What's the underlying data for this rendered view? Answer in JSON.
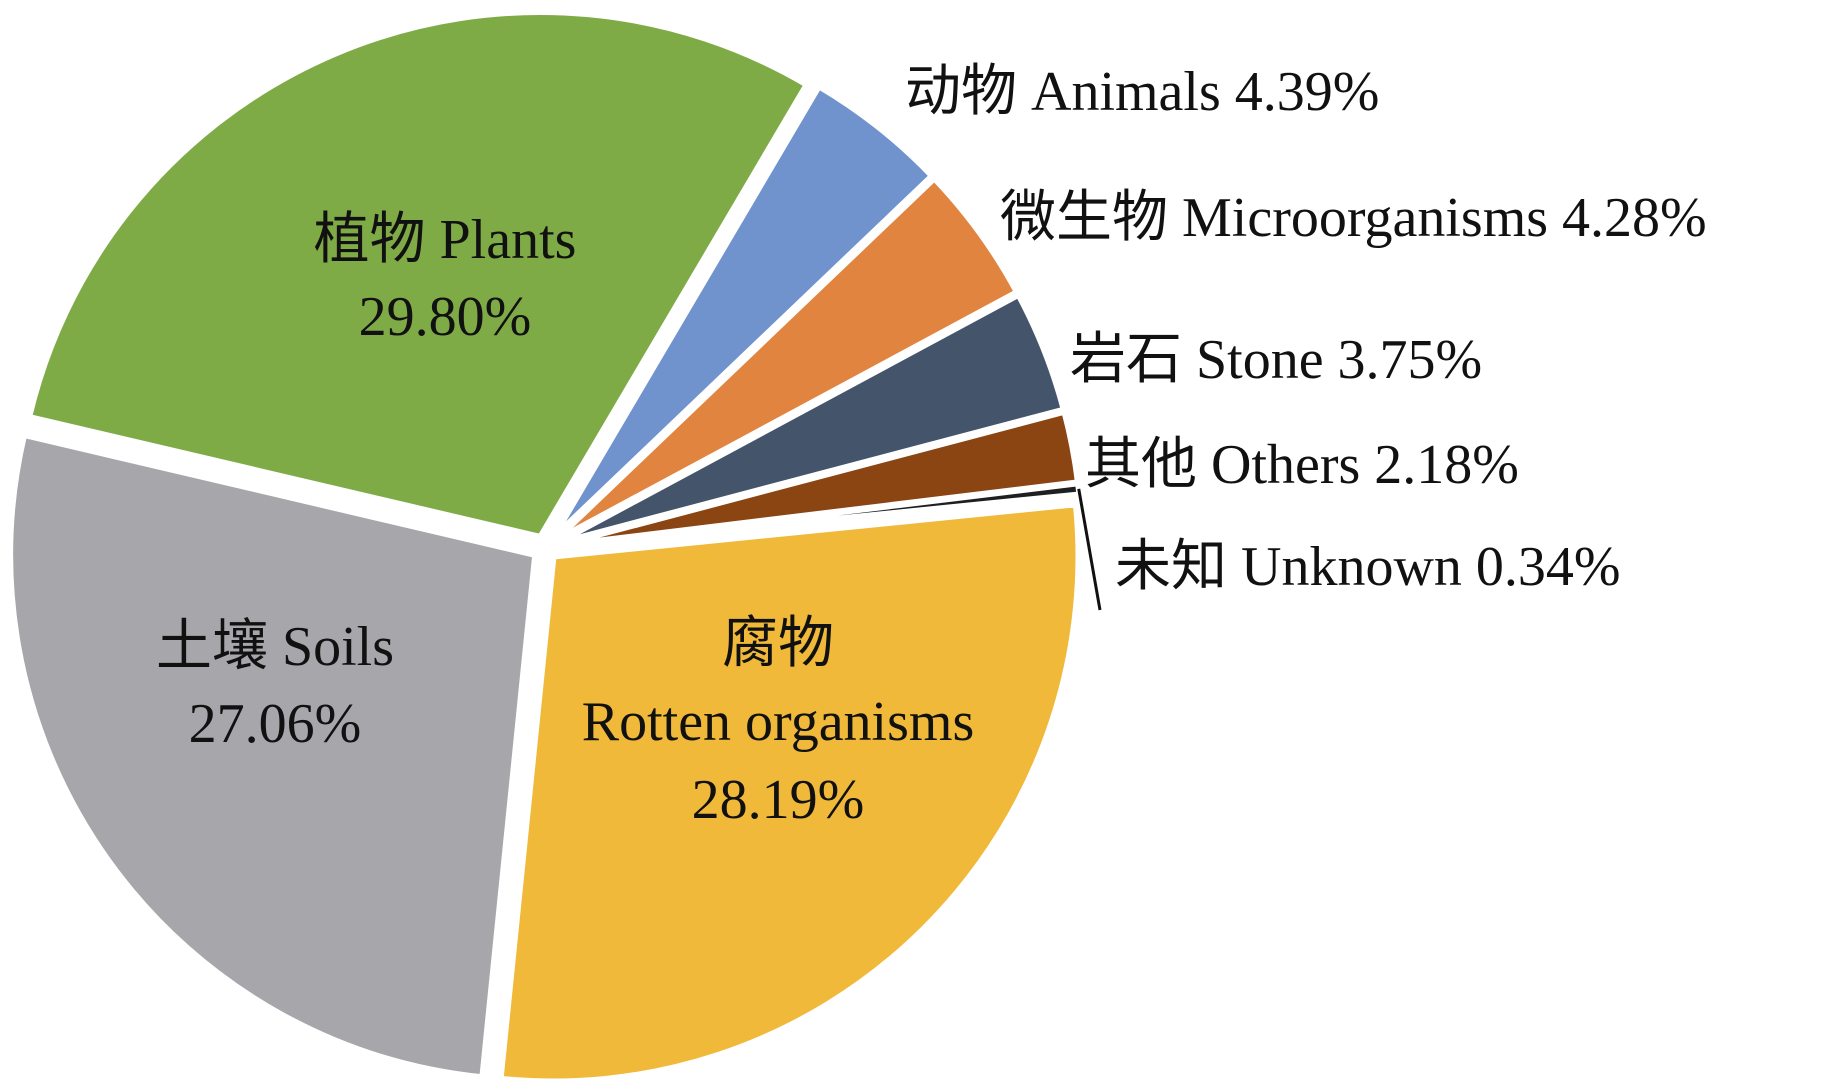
{
  "chart_data": {
    "type": "pie",
    "start_angle_deg": 90,
    "direction": "clockwise",
    "slices": [
      {
        "label": "动物 Animals",
        "value": 4.39,
        "display": "4.39%",
        "color": "#7092cd",
        "label_style": "outside"
      },
      {
        "label": "微生物 Microorganisms",
        "value": 4.28,
        "display": "4.28%",
        "color": "#e0843f",
        "label_style": "outside"
      },
      {
        "label": "岩石 Stone",
        "value": 3.75,
        "display": "3.75%",
        "color": "#44546a",
        "label_style": "outside"
      },
      {
        "label": "其他 Others",
        "value": 2.18,
        "display": "2.18%",
        "color": "#8b4513",
        "label_style": "outside"
      },
      {
        "label": "未知 Unknown",
        "value": 0.34,
        "display": "0.34%",
        "color": "#1f1f1f",
        "label_style": "outside-leader"
      },
      {
        "label_lines": [
          "腐物",
          "Rotten organisms"
        ],
        "label": "腐物 Rotten organisms",
        "value": 28.19,
        "display": "28.19%",
        "color": "#f0b93a",
        "label_style": "inside"
      },
      {
        "label_lines": [
          "土壤 Soils"
        ],
        "label": "土壤 Soils",
        "value": 27.06,
        "display": "27.06%",
        "color": "#a7a6aa",
        "label_style": "inside"
      },
      {
        "label_lines": [
          "植物 Plants"
        ],
        "label": "植物 Plants",
        "value": 29.8,
        "display": "29.80%",
        "color": "#7fab47",
        "label_style": "inside"
      }
    ]
  }
}
